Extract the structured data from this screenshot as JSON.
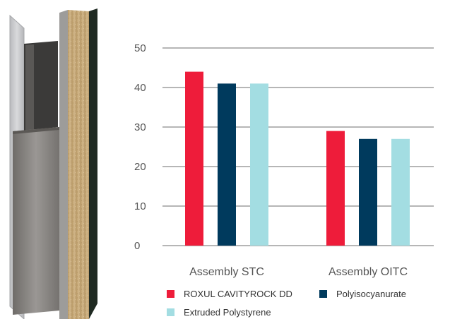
{
  "chart_data": {
    "type": "bar",
    "title": "",
    "xlabel": "",
    "ylabel": "",
    "categories": [
      "Assembly STC",
      "Assembly OITC"
    ],
    "series": [
      {
        "name": "ROXUL CAVITYROCK DD",
        "values": [
          44,
          29
        ],
        "color": "#ee1c3a"
      },
      {
        "name": "Polyisocyanurate",
        "values": [
          41,
          27
        ],
        "color": "#003a5d"
      },
      {
        "name": "Extruded Polystyrene",
        "values": [
          41,
          27
        ],
        "color": "#a3dde2"
      }
    ],
    "ylim": [
      0,
      50
    ],
    "yticks": [
      0,
      10,
      20,
      30,
      40,
      50
    ],
    "grid": true,
    "legend_position": "bottom"
  },
  "illustration": {
    "name": "wall-assembly-cross-section",
    "colors": {
      "panel": "#c9cacc",
      "stud": "#8a8784",
      "insulation": "#c9ad7b",
      "membrane": "#1f2a22"
    }
  }
}
